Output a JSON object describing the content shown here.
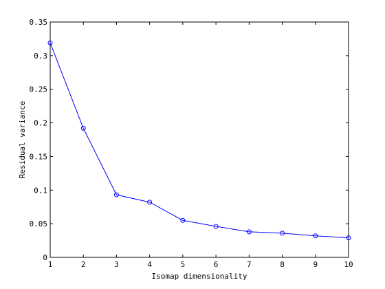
{
  "chart_data": {
    "type": "line",
    "title": "",
    "xlabel": "Isomap dimensionality",
    "ylabel": "Residual variance",
    "xlim": [
      1,
      10
    ],
    "ylim": [
      0,
      0.35
    ],
    "grid": false,
    "legend": "none",
    "x": [
      1,
      2,
      3,
      4,
      5,
      6,
      7,
      8,
      9,
      10
    ],
    "xticks": [
      "1",
      "2",
      "3",
      "4",
      "5",
      "6",
      "7",
      "8",
      "9",
      "10"
    ],
    "yticks_values": [
      0,
      0.05,
      0.1,
      0.15,
      0.2,
      0.25,
      0.3,
      0.35
    ],
    "yticks": [
      "0",
      "0.05",
      "0.1",
      "0.15",
      "0.2",
      "0.25",
      "0.3",
      "0.35"
    ],
    "series": [
      {
        "values": [
          0.319,
          0.192,
          0.093,
          0.082,
          0.055,
          0.046,
          0.038,
          0.036,
          0.032,
          0.029
        ],
        "color": "#0000ff",
        "marker": "circle"
      }
    ]
  }
}
